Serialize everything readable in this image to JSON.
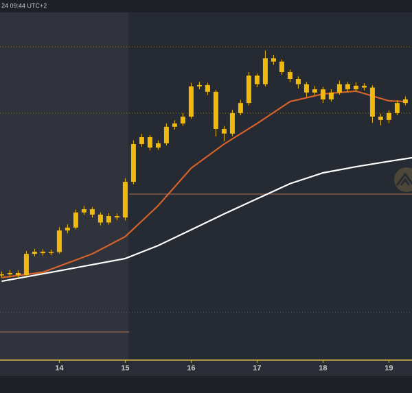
{
  "chart_data": {
    "type": "candlestick",
    "title": "24 09:44 UTC+2",
    "color": "#f0b90b",
    "xlim": [
      13.1,
      19.35
    ],
    "ylim": [
      0,
      100
    ],
    "xticks": [
      14,
      15,
      16,
      17,
      18,
      19
    ],
    "x": [
      13.125,
      13.25,
      13.375,
      13.5,
      13.625,
      13.75,
      13.875,
      14.0,
      14.125,
      14.25,
      14.375,
      14.5,
      14.625,
      14.75,
      14.875,
      15.0,
      15.125,
      15.25,
      15.375,
      15.5,
      15.625,
      15.75,
      15.875,
      16.0,
      16.125,
      16.25,
      16.375,
      16.5,
      16.625,
      16.75,
      16.875,
      17.0,
      17.125,
      17.25,
      17.375,
      17.5,
      17.625,
      17.75,
      17.875,
      18.0,
      18.125,
      18.25,
      18.375,
      18.5,
      18.625,
      18.75,
      18.875,
      19.0,
      19.125,
      19.25
    ],
    "open": [
      23.5,
      23.8,
      24.2,
      23.6,
      29.5,
      30.1,
      29.7,
      30.0,
      36.0,
      36.8,
      41.0,
      41.9,
      40.4,
      38.2,
      40.0,
      39.6,
      49.5,
      60.0,
      61.9,
      59.0,
      60.2,
      64.8,
      65.7,
      67.6,
      76.0,
      76.4,
      74.5,
      64.2,
      62.9,
      68.6,
      71.4,
      79.0,
      76.6,
      83.8,
      82.9,
      80.0,
      78.1,
      76.6,
      74.3,
      75.2,
      72.4,
      74.3,
      76.6,
      75.2,
      76.2,
      75.7,
      67.6,
      66.7,
      68.6,
      71.4
    ],
    "high": [
      24.6,
      25.0,
      24.9,
      30.3,
      30.9,
      30.8,
      30.7,
      36.9,
      37.7,
      41.8,
      42.8,
      42.5,
      41.0,
      40.8,
      40.7,
      50.5,
      61.0,
      62.8,
      62.5,
      61.0,
      65.7,
      66.6,
      68.6,
      77.0,
      77.3,
      77.0,
      75.1,
      65.0,
      69.5,
      72.3,
      80.0,
      79.6,
      86.0,
      84.8,
      83.5,
      80.7,
      78.8,
      77.2,
      76.1,
      75.9,
      75.2,
      77.6,
      77.2,
      77.1,
      76.9,
      76.3,
      68.4,
      69.4,
      72.2,
      73.2
    ],
    "low": [
      22.9,
      23.0,
      22.8,
      23.2,
      28.8,
      29.0,
      29.1,
      29.6,
      35.2,
      36.3,
      40.3,
      39.6,
      37.4,
      37.6,
      38.9,
      38.8,
      48.8,
      59.3,
      58.2,
      58.4,
      59.6,
      64.0,
      65.0,
      67.0,
      75.2,
      73.6,
      62.1,
      60.8,
      62.2,
      68.0,
      70.7,
      75.8,
      76.0,
      82.0,
      79.2,
      77.2,
      75.4,
      73.0,
      73.6,
      71.4,
      71.8,
      73.7,
      74.4,
      74.6,
      74.9,
      65.9,
      65.2,
      65.8,
      68.0,
      70.8
    ],
    "close": [
      23.8,
      24.2,
      23.6,
      29.5,
      30.1,
      29.7,
      30.0,
      36.0,
      36.8,
      41.0,
      41.9,
      40.4,
      38.2,
      40.0,
      39.6,
      49.5,
      60.0,
      61.9,
      59.0,
      60.2,
      64.8,
      65.7,
      67.6,
      76.0,
      76.4,
      74.5,
      64.2,
      62.9,
      68.6,
      71.4,
      79.0,
      76.6,
      83.8,
      82.9,
      80.0,
      78.1,
      76.6,
      74.3,
      75.2,
      72.4,
      74.3,
      76.6,
      75.2,
      76.2,
      75.7,
      67.6,
      66.7,
      68.6,
      71.4,
      72.4
    ],
    "lines": [
      {
        "color": "#d4622a",
        "x": [
          13.125,
          13.75,
          14.5,
          15.0,
          15.5,
          16.0,
          16.5,
          17.0,
          17.5,
          18.0,
          18.5,
          19.0,
          19.25
        ],
        "values": [
          22.9,
          24.4,
          29.5,
          34.3,
          42.9,
          53.3,
          60.0,
          65.7,
          71.8,
          73.9,
          74.7,
          72.0,
          71.8
        ]
      },
      {
        "color": "#ffffff",
        "x": [
          13.125,
          14.0,
          15.0,
          15.5,
          16.0,
          16.5,
          17.0,
          17.5,
          18.0,
          18.5,
          19.0,
          19.35
        ],
        "values": [
          21.9,
          24.8,
          28.2,
          31.8,
          36.2,
          40.6,
          44.8,
          49.0,
          52.0,
          53.7,
          55.2,
          56.2
        ]
      }
    ],
    "levels": [
      {
        "value": 87.0,
        "color": "#8a7a3a",
        "style": "dotted",
        "xrange": [
          13.1,
          19.35
        ]
      },
      {
        "value": 68.6,
        "color": "#8a7a3a",
        "style": "dotted",
        "xrange": [
          13.1,
          19.35
        ]
      },
      {
        "value": 46.1,
        "color": "#b5714f",
        "style": "solid",
        "xrange": [
          15.06,
          19.35
        ]
      },
      {
        "value": 13.3,
        "color": "#5a5a5a",
        "style": "dotted",
        "xrange": [
          13.1,
          19.35
        ]
      },
      {
        "value": 7.8,
        "color": "#b5714f",
        "style": "solid",
        "xrange": [
          13.1,
          15.06
        ]
      }
    ]
  }
}
